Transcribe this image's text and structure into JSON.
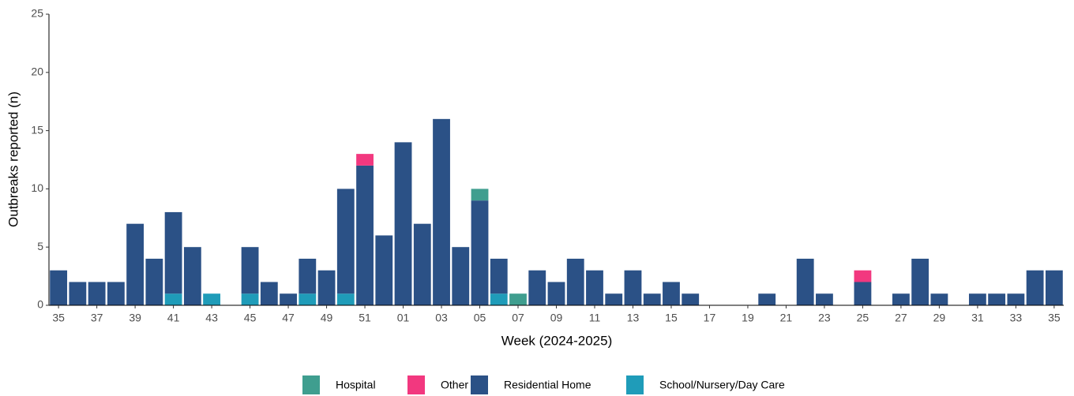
{
  "chart_data": {
    "type": "stacked-bar",
    "x_label": "Week (2024-2025)",
    "y_label": "Outbreaks reported (n)",
    "categories": [
      "35",
      null,
      "37",
      null,
      "39",
      null,
      "41",
      null,
      "43",
      null,
      "45",
      null,
      "47",
      null,
      "49",
      null,
      "51",
      null,
      "01",
      null,
      "03",
      null,
      "05",
      null,
      "07",
      null,
      "09",
      null,
      "11",
      null,
      "13",
      null,
      "15",
      null,
      "17",
      null,
      "19",
      null,
      "21",
      null,
      "23",
      null,
      "25",
      null,
      "27",
      null,
      "29",
      null,
      "31",
      null,
      "33",
      null,
      "35"
    ],
    "series": [
      {
        "name": "Hospital",
        "color": "#3f9e8f",
        "values": [
          0,
          0,
          0,
          0,
          0,
          0,
          0,
          0,
          0,
          0,
          0,
          0,
          0,
          0,
          0,
          0,
          0,
          0,
          0,
          0,
          0,
          0,
          1,
          0,
          1,
          0,
          0,
          0,
          0,
          0,
          0,
          0,
          0,
          0,
          0,
          0,
          0,
          0,
          0,
          0,
          0,
          0,
          0,
          0,
          0,
          0,
          0,
          0,
          0,
          0,
          0,
          0,
          0
        ]
      },
      {
        "name": "Other",
        "color": "#f2387f",
        "values": [
          0,
          0,
          0,
          0,
          0,
          0,
          0,
          0,
          0,
          0,
          0,
          0,
          0,
          0,
          0,
          0,
          1,
          0,
          0,
          0,
          0,
          0,
          0,
          0,
          0,
          0,
          0,
          0,
          0,
          0,
          0,
          0,
          0,
          0,
          0,
          0,
          0,
          0,
          0,
          0,
          0,
          0,
          1,
          0,
          0,
          0,
          0,
          0,
          0,
          0,
          0,
          0,
          0
        ]
      },
      {
        "name": "Residential Home",
        "color": "#2b5186",
        "values": [
          3,
          2,
          2,
          2,
          7,
          4,
          7,
          5,
          0,
          0,
          4,
          2,
          1,
          3,
          3,
          9,
          12,
          6,
          14,
          7,
          16,
          5,
          9,
          3,
          0,
          3,
          2,
          4,
          3,
          1,
          3,
          1,
          2,
          1,
          0,
          0,
          0,
          1,
          0,
          4,
          1,
          0,
          2,
          0,
          1,
          4,
          1,
          0,
          1,
          1,
          1,
          3,
          3
        ]
      },
      {
        "name": "School/Nursery/Day Care",
        "color": "#1f9cb9",
        "values": [
          0,
          0,
          0,
          0,
          0,
          0,
          1,
          0,
          1,
          0,
          1,
          0,
          0,
          1,
          0,
          1,
          0,
          0,
          0,
          0,
          0,
          0,
          0,
          1,
          0,
          0,
          0,
          0,
          0,
          0,
          0,
          0,
          0,
          0,
          0,
          0,
          0,
          0,
          0,
          0,
          0,
          0,
          0,
          0,
          0,
          0,
          0,
          0,
          0,
          0,
          0,
          0,
          0
        ]
      }
    ],
    "ylim": [
      0,
      25
    ],
    "yticks": [
      0,
      5,
      10,
      15,
      20,
      25
    ],
    "grid": false,
    "legend": "bottom"
  }
}
